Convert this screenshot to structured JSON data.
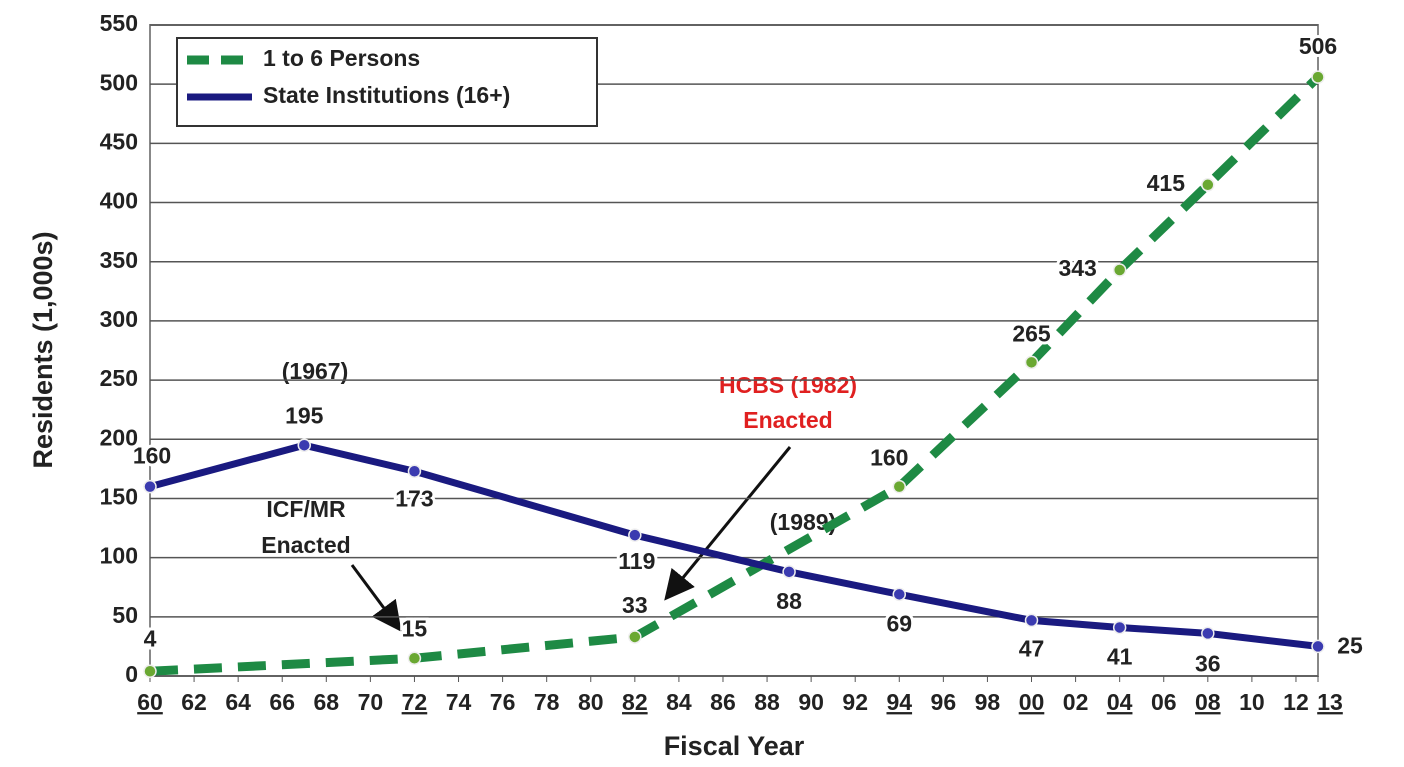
{
  "chart_data": {
    "type": "line",
    "y_label": "Residents (1,000s)",
    "x_label": "Fiscal Year",
    "xlim": [
      1960,
      2013
    ],
    "xticks": [
      {
        "value": 1960,
        "label": "60"
      },
      {
        "value": 1962,
        "label": "62"
      },
      {
        "value": 1964,
        "label": "64"
      },
      {
        "value": 1966,
        "label": "66"
      },
      {
        "value": 1968,
        "label": "68"
      },
      {
        "value": 1970,
        "label": "70"
      },
      {
        "value": 1972,
        "label": "72"
      },
      {
        "value": 1974,
        "label": "74"
      },
      {
        "value": 1976,
        "label": "76"
      },
      {
        "value": 1978,
        "label": "78"
      },
      {
        "value": 1980,
        "label": "80"
      },
      {
        "value": 1982,
        "label": "82"
      },
      {
        "value": 1984,
        "label": "84"
      },
      {
        "value": 1986,
        "label": "86"
      },
      {
        "value": 1988,
        "label": "88"
      },
      {
        "value": 1990,
        "label": "90"
      },
      {
        "value": 1992,
        "label": "92"
      },
      {
        "value": 1994,
        "label": "94"
      },
      {
        "value": 1996,
        "label": "96"
      },
      {
        "value": 1998,
        "label": "98"
      },
      {
        "value": 2000,
        "label": "00"
      },
      {
        "value": 2002,
        "label": "02"
      },
      {
        "value": 2004,
        "label": "04"
      },
      {
        "value": 2006,
        "label": "06"
      },
      {
        "value": 2008,
        "label": "08"
      },
      {
        "value": 2010,
        "label": "10"
      },
      {
        "value": 2012,
        "label": "12"
      },
      {
        "value": 2013,
        "label": "13"
      }
    ],
    "ylim": [
      0,
      550
    ],
    "yticks": [
      0,
      50,
      100,
      150,
      200,
      250,
      300,
      350,
      400,
      450,
      500,
      550
    ],
    "grid": true,
    "legend": "top-left",
    "series": [
      {
        "name": "1 to 6 Persons",
        "color": "#1e8a44",
        "dashed": true,
        "x": [
          1960,
          1972,
          1982,
          1994,
          2000,
          2004,
          2008,
          2013
        ],
        "values": [
          4,
          15,
          33,
          160,
          265,
          343,
          415,
          506
        ]
      },
      {
        "name": "State Institutions (16+)",
        "color": "#1a1a80",
        "dashed": false,
        "x": [
          1960,
          1967,
          1972,
          1982,
          1989,
          1994,
          2000,
          2004,
          2008,
          2013
        ],
        "values": [
          160,
          195,
          173,
          119,
          88,
          69,
          47,
          41,
          36,
          25
        ]
      }
    ],
    "annotations": [
      "(1967)",
      "(1989)",
      "ICF/MR",
      "Enacted",
      "HCBS (1982)",
      "Enacted"
    ]
  }
}
